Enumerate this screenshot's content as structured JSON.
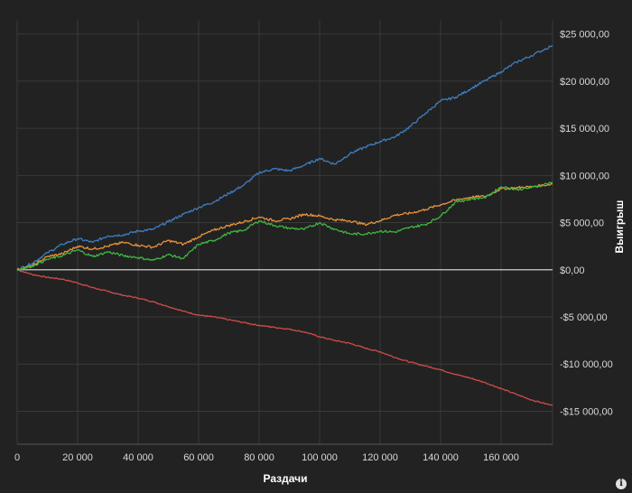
{
  "chart_data": {
    "type": "line",
    "title": "",
    "xlabel": "Раздачи",
    "ylabel": "Выигрыш",
    "xlim": [
      0,
      177000
    ],
    "ylim": [
      -18500,
      26500
    ],
    "grid": true,
    "x_ticks": [
      0,
      20000,
      40000,
      60000,
      80000,
      100000,
      120000,
      140000,
      160000
    ],
    "x_tick_labels": [
      "0",
      "20 000",
      "40 000",
      "60 000",
      "80 000",
      "100 000",
      "120 000",
      "140 000",
      "160 000"
    ],
    "y_ticks": [
      25000,
      20000,
      15000,
      10000,
      5000,
      0,
      -5000,
      -10000,
      -15000
    ],
    "y_tick_labels": [
      "$25 000,00",
      "$20 000,00",
      "$15 000,00",
      "$10 000,00",
      "$5 000,00",
      "$0,00",
      "-$5 000,00",
      "-$10 000,00",
      "-$15 000,00"
    ],
    "series": [
      {
        "color": "#3d7fc1",
        "x": [
          0,
          5000,
          10000,
          15000,
          20000,
          25000,
          30000,
          35000,
          40000,
          45000,
          50000,
          55000,
          60000,
          65000,
          70000,
          75000,
          80000,
          85000,
          90000,
          95000,
          100000,
          105000,
          110000,
          115000,
          120000,
          125000,
          130000,
          135000,
          140000,
          145000,
          150000,
          155000,
          160000,
          165000,
          170000,
          177000
        ],
        "values": [
          0,
          700,
          1800,
          2700,
          3300,
          2900,
          3600,
          3700,
          4100,
          4300,
          5100,
          5900,
          6600,
          7200,
          8100,
          9000,
          10300,
          10700,
          10500,
          11100,
          11800,
          11200,
          12300,
          13000,
          13600,
          14100,
          15200,
          16600,
          17900,
          18300,
          19200,
          20100,
          21000,
          22000,
          22700,
          23800
        ]
      },
      {
        "color": "#e8923a",
        "x": [
          0,
          5000,
          10000,
          15000,
          20000,
          25000,
          30000,
          35000,
          40000,
          45000,
          50000,
          55000,
          60000,
          65000,
          70000,
          75000,
          80000,
          85000,
          90000,
          95000,
          100000,
          105000,
          110000,
          115000,
          120000,
          125000,
          130000,
          135000,
          140000,
          145000,
          150000,
          155000,
          160000,
          165000,
          170000,
          177000
        ],
        "values": [
          0,
          400,
          1400,
          1700,
          2500,
          2200,
          2500,
          2900,
          2600,
          2400,
          3100,
          2700,
          3500,
          4200,
          4700,
          5100,
          5600,
          5200,
          5400,
          5900,
          5700,
          5300,
          5200,
          4800,
          5200,
          5800,
          6000,
          6400,
          6900,
          7400,
          7700,
          7800,
          8600,
          8700,
          8800,
          9100
        ]
      },
      {
        "color": "#3fb540",
        "x": [
          0,
          5000,
          10000,
          15000,
          20000,
          25000,
          30000,
          35000,
          40000,
          45000,
          50000,
          55000,
          60000,
          65000,
          70000,
          75000,
          80000,
          85000,
          90000,
          95000,
          100000,
          105000,
          110000,
          115000,
          120000,
          125000,
          130000,
          135000,
          140000,
          145000,
          150000,
          155000,
          160000,
          165000,
          170000,
          177000
        ],
        "values": [
          0,
          400,
          1100,
          1500,
          2100,
          1400,
          1900,
          1500,
          1300,
          1000,
          1600,
          1200,
          2700,
          3100,
          3900,
          4200,
          5200,
          4700,
          4400,
          4300,
          5000,
          4300,
          3800,
          3800,
          4100,
          4000,
          4500,
          4800,
          5700,
          7200,
          7500,
          7700,
          8800,
          8500,
          8700,
          9300
        ]
      },
      {
        "color": "#d14b4b",
        "x": [
          0,
          5000,
          10000,
          15000,
          20000,
          25000,
          30000,
          35000,
          40000,
          45000,
          50000,
          55000,
          60000,
          65000,
          70000,
          75000,
          80000,
          85000,
          90000,
          95000,
          100000,
          105000,
          110000,
          115000,
          120000,
          125000,
          130000,
          135000,
          140000,
          145000,
          150000,
          155000,
          160000,
          165000,
          170000,
          177000
        ],
        "values": [
          0,
          -500,
          -800,
          -1000,
          -1400,
          -1900,
          -2300,
          -2700,
          -3000,
          -3400,
          -3900,
          -4400,
          -4800,
          -5000,
          -5300,
          -5600,
          -5900,
          -6100,
          -6300,
          -6600,
          -7100,
          -7500,
          -7800,
          -8300,
          -8700,
          -9300,
          -9800,
          -10200,
          -10600,
          -11100,
          -11500,
          -12000,
          -12600,
          -13200,
          -13800,
          -14400
        ]
      }
    ]
  },
  "info_icon_glyph": "i"
}
